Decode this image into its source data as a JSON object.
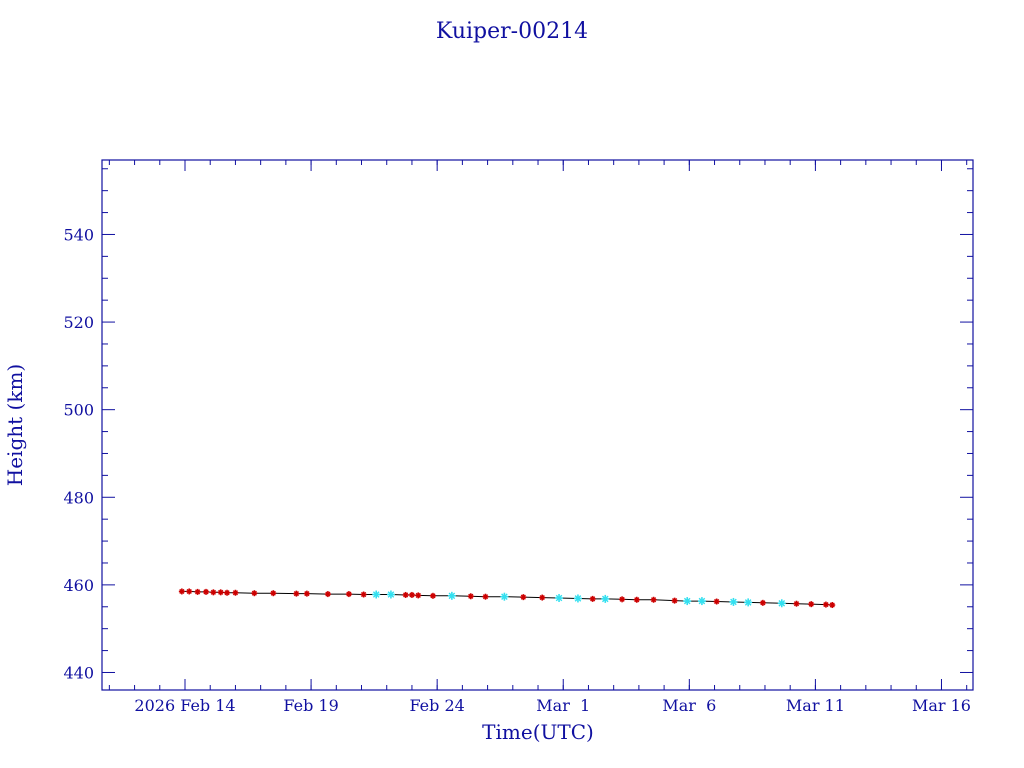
{
  "colors": {
    "axis": "#1010a0",
    "text": "#1010a0",
    "line": "#000000",
    "marker_primary": "#cc0000",
    "marker_secondary": "#33e0f0",
    "background": "#ffffff"
  },
  "chart_data": {
    "type": "line",
    "title": "Kuiper-00214",
    "xlabel": "Time(UTC)",
    "ylabel": "Height (km)",
    "xlim": [
      "2026-02-10T17:00",
      "2026-03-17T06:00"
    ],
    "ylim": [
      436,
      557
    ],
    "xticks": [
      {
        "date": "2026-02-14",
        "label": "2026 Feb 14"
      },
      {
        "date": "2026-02-19",
        "label": "Feb 19"
      },
      {
        "date": "2026-02-24",
        "label": "Feb 24"
      },
      {
        "date": "2026-03-01",
        "label": "Mar  1"
      },
      {
        "date": "2026-03-06",
        "label": "Mar  6"
      },
      {
        "date": "2026-03-11",
        "label": "Mar 11"
      },
      {
        "date": "2026-03-16",
        "label": "Mar 16"
      }
    ],
    "yticks": [
      440,
      460,
      480,
      500,
      520,
      540
    ],
    "grid": false,
    "series": [
      {
        "x": [
          "2026-02-13T21:00",
          "2026-02-14T04:00",
          "2026-02-14T12:00",
          "2026-02-14T20:00",
          "2026-02-15T03:00",
          "2026-02-15T10:00",
          "2026-02-15T16:00",
          "2026-02-16T00:00",
          "2026-02-16T18:00",
          "2026-02-17T12:00",
          "2026-02-18T10:00",
          "2026-02-18T20:00",
          "2026-02-19T16:00",
          "2026-02-20T12:00",
          "2026-02-21T02:00",
          "2026-02-21T14:00",
          "2026-02-22T04:00",
          "2026-02-22T18:00",
          "2026-02-23T00:00",
          "2026-02-23T06:00",
          "2026-02-23T20:00",
          "2026-02-24T14:00",
          "2026-02-25T08:00",
          "2026-02-25T22:00",
          "2026-02-26T16:00",
          "2026-02-27T10:00",
          "2026-02-28T04:00",
          "2026-02-28T20:00",
          "2026-03-01T14:00",
          "2026-03-02T04:00",
          "2026-03-02T16:00",
          "2026-03-03T08:00",
          "2026-03-03T22:00",
          "2026-03-04T14:00",
          "2026-03-05T10:00",
          "2026-03-05T22:00",
          "2026-03-06T12:00",
          "2026-03-07T02:00",
          "2026-03-07T18:00",
          "2026-03-08T08:00",
          "2026-03-08T22:00",
          "2026-03-09T16:00",
          "2026-03-10T06:00",
          "2026-03-10T20:00",
          "2026-03-11T10:00",
          "2026-03-11T16:00"
        ],
        "y": [
          458.5,
          458.5,
          458.4,
          458.4,
          458.3,
          458.3,
          458.2,
          458.2,
          458.1,
          458.1,
          458.0,
          458.0,
          457.9,
          457.9,
          457.8,
          457.8,
          457.8,
          457.7,
          457.7,
          457.6,
          457.5,
          457.5,
          457.4,
          457.3,
          457.3,
          457.2,
          457.1,
          457.0,
          456.9,
          456.8,
          456.8,
          456.7,
          456.6,
          456.6,
          456.4,
          456.3,
          456.3,
          456.2,
          456.1,
          456.0,
          455.9,
          455.8,
          455.7,
          455.6,
          455.5,
          455.4
        ],
        "highlighted_x": [
          "2026-02-21T14:00",
          "2026-02-22T04:00",
          "2026-02-24T14:00",
          "2026-02-26T16:00",
          "2026-02-28T20:00",
          "2026-03-01T14:00",
          "2026-03-02T16:00",
          "2026-03-05T22:00",
          "2026-03-06T12:00",
          "2026-03-07T18:00",
          "2026-03-08T08:00",
          "2026-03-09T16:00"
        ]
      }
    ]
  }
}
